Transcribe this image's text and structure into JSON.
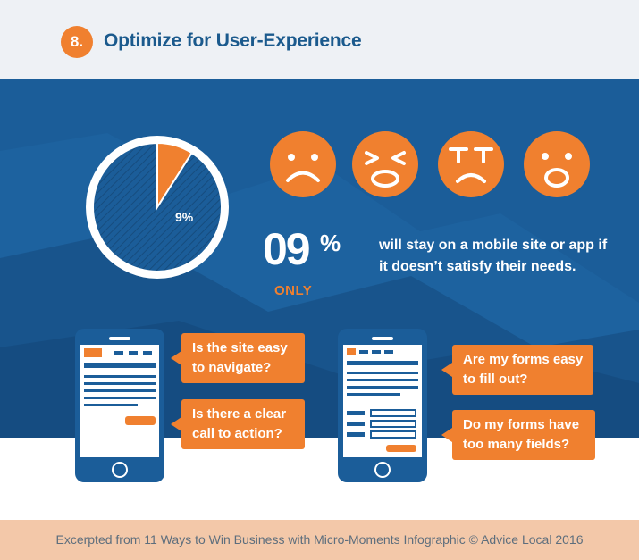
{
  "header": {
    "step_number": "8.",
    "title": "Optimize for User-Experience"
  },
  "chart_data": {
    "type": "pie",
    "title": "",
    "slices": [
      {
        "label": "9%",
        "value": 9,
        "color": "#f0802f"
      },
      {
        "label": "",
        "value": 91,
        "color": "#1b5d99"
      }
    ]
  },
  "faces": [
    {
      "name": "sad-face-icon"
    },
    {
      "name": "squinting-face-icon"
    },
    {
      "name": "crying-face-icon"
    },
    {
      "name": "shocked-face-icon"
    }
  ],
  "stat": {
    "number": "09",
    "unit": "%",
    "qualifier": "ONLY",
    "description": "will stay on a mobile site or app if it doesn’t satisfy their needs."
  },
  "questions": {
    "q1": "Is the site easy to navigate?",
    "q2": "Is there a clear call to action?",
    "q3": "Are my forms easy to fill out?",
    "q4": "Do my forms have too many fields?"
  },
  "footer": {
    "text": "Excerpted from 11 Ways to Win Business with Micro-Moments Infographic © Advice Local 2016"
  },
  "colors": {
    "accent": "#f0802f",
    "primary": "#1b5d99",
    "header_bg": "#eef1f5",
    "footer_bg": "#f3c8a9"
  }
}
